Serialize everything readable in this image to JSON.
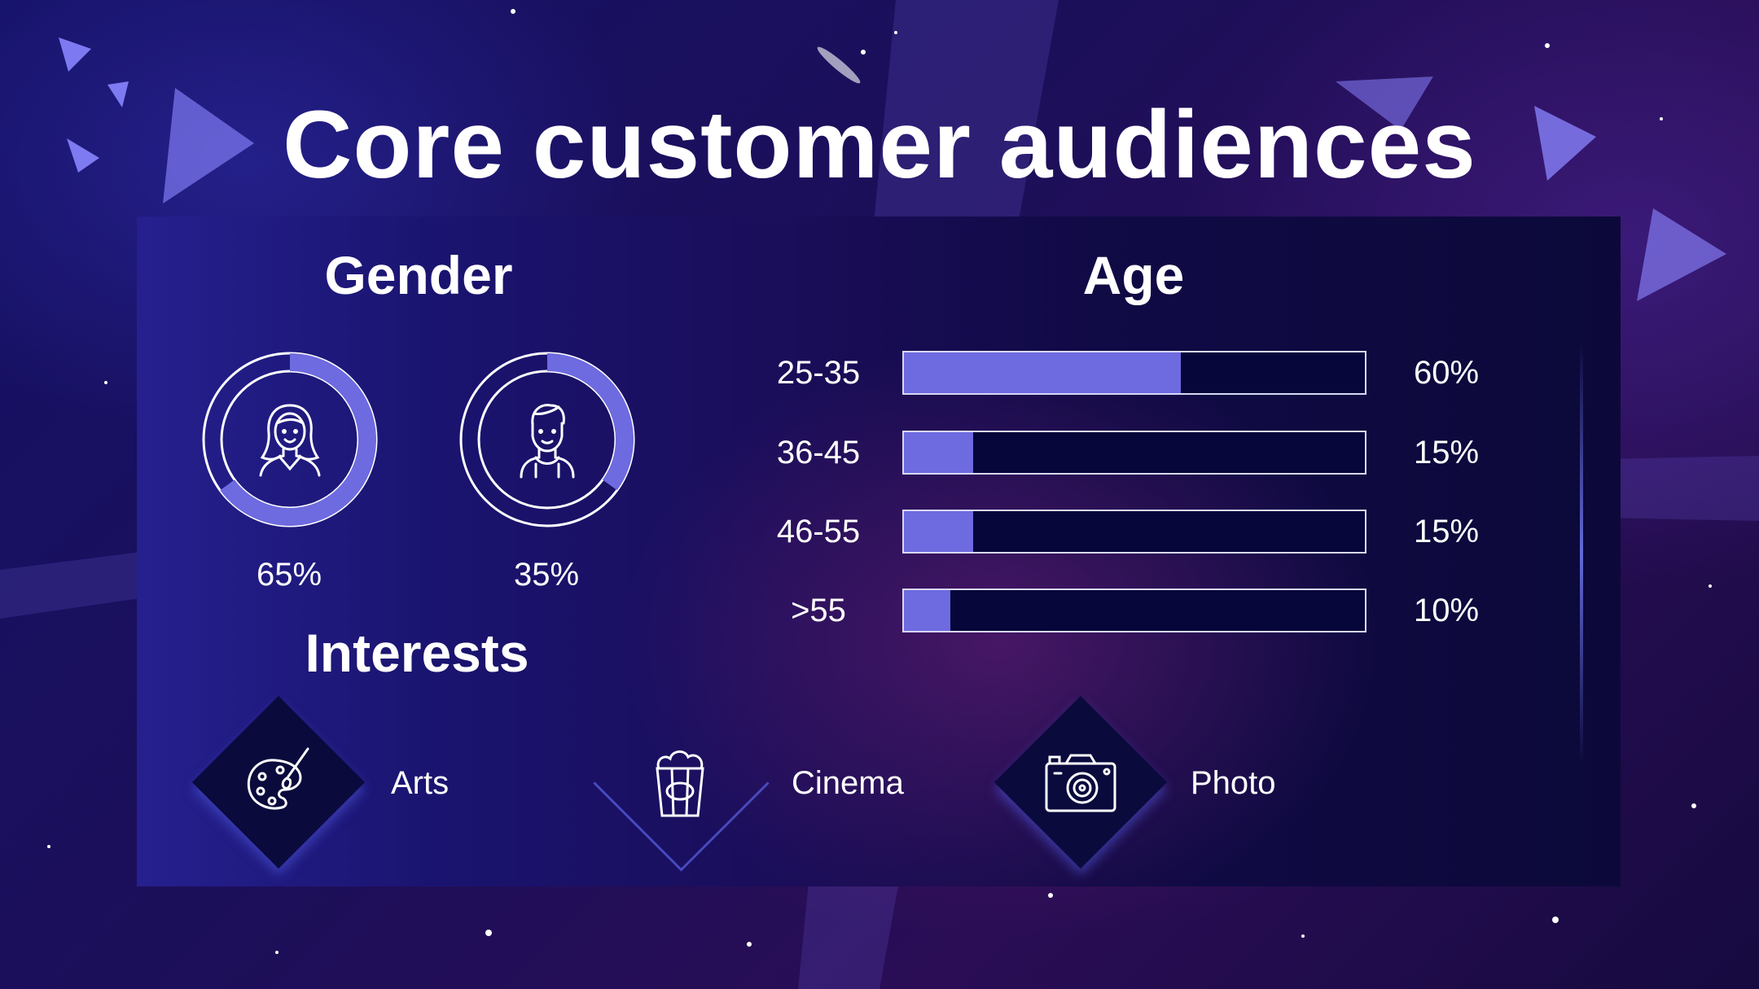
{
  "title": "Core customer audiences",
  "gender": {
    "heading": "Gender",
    "items": [
      {
        "icon": "woman-icon",
        "value": 65,
        "label": "65%"
      },
      {
        "icon": "man-icon",
        "value": 35,
        "label": "35%"
      }
    ]
  },
  "age": {
    "heading": "Age",
    "rows": [
      {
        "label": "25-35",
        "value": 60,
        "pct": "60%"
      },
      {
        "label": "36-45",
        "value": 15,
        "pct": "15%"
      },
      {
        "label": "46-55",
        "value": 15,
        "pct": "15%"
      },
      {
        "label": ">55",
        "value": 10,
        "pct": "10%"
      }
    ]
  },
  "interests": {
    "heading": "Interests",
    "items": [
      {
        "icon": "palette-icon",
        "label": "Arts"
      },
      {
        "icon": "popcorn-icon",
        "label": "Cinema"
      },
      {
        "icon": "camera-icon",
        "label": "Photo"
      }
    ]
  },
  "colors": {
    "accent": "#6e6ae0",
    "track": "#06063a",
    "text": "#ffffff"
  },
  "chart_data": [
    {
      "type": "pie",
      "title": "Gender",
      "categories": [
        "",
        ""
      ],
      "values": [
        65,
        35
      ]
    },
    {
      "type": "bar",
      "title": "Age",
      "categories": [
        "25-35",
        "36-45",
        "46-55",
        ">55"
      ],
      "values": [
        60,
        15,
        15,
        10
      ],
      "ylim": [
        0,
        100
      ]
    }
  ]
}
